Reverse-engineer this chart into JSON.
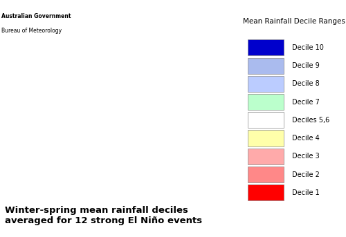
{
  "title": "Mean Rainfall Decile Ranges",
  "annotation": "Winter-spring mean rainfall deciles\naveraged for 12 strong El Niño events",
  "annotation_fontsize": 9.5,
  "annotation_fontweight": "bold",
  "legend_title": "Mean Rainfall Decile Ranges",
  "legend_title_fontsize": 7.5,
  "legend_items": [
    {
      "label": "Decile 10",
      "color": "#0000CC"
    },
    {
      "label": "Decile 9",
      "color": "#AABBEE"
    },
    {
      "label": "Decile 8",
      "color": "#BBCCFF"
    },
    {
      "label": "Decile 7",
      "color": "#BBFFCC"
    },
    {
      "label": "Deciles 5,6",
      "color": "#FFFFFF"
    },
    {
      "label": "Decile 4",
      "color": "#FFFFAA"
    },
    {
      "label": "Decile 3",
      "color": "#FFAAAA"
    },
    {
      "label": "Decile 2",
      "color": "#FF8888"
    },
    {
      "label": "Decile 1",
      "color": "#FF0000"
    }
  ],
  "bg_color": "#FFFFFF",
  "map_bg": "#FFFFFF",
  "border_color": "#000000",
  "decile1_color": "#FF0000",
  "decile2_color": "#FF8888",
  "decile3_color": "#FFAAAA",
  "decile4_color": "#FFFFAA",
  "decile56_color": "#FFFFFF",
  "decile7_color": "#BBFFCC",
  "decile8_color": "#BBCCFF",
  "decile9_color": "#AABBEE",
  "decile10_color": "#0000CC"
}
